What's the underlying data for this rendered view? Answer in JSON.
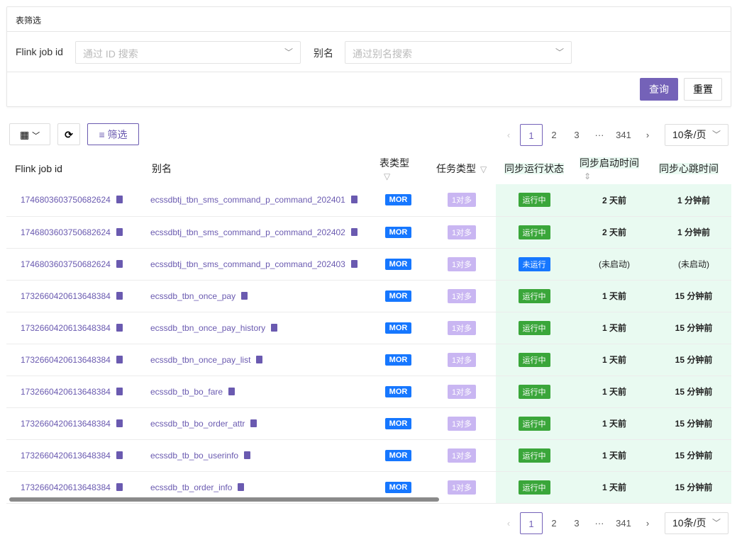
{
  "filter": {
    "title": "表筛选",
    "job_label": "Flink job id",
    "job_placeholder": "通过 ID 搜索",
    "alias_label": "别名",
    "alias_placeholder": "通过别名搜索",
    "query": "查询",
    "reset": "重置"
  },
  "toolbar": {
    "filter_label": "筛选"
  },
  "pagination": {
    "prev": "‹",
    "pages": [
      "1",
      "2",
      "3"
    ],
    "ellipsis": "···",
    "last": "341",
    "next": "›",
    "page_size": "10条/页",
    "current": "1"
  },
  "columns": [
    "Flink job id",
    "别名",
    "表类型",
    "任务类型",
    "同步运行状态",
    "同步启动时间",
    "同步心跳时间"
  ],
  "rows": [
    {
      "id": "1746803603750682624",
      "alias": "ecssdbtj_tbn_sms_command_p_command_202401",
      "type": "MOR",
      "task": "1对多",
      "status": "运行中",
      "start": "2 天前",
      "beat": "1 分钟前"
    },
    {
      "id": "1746803603750682624",
      "alias": "ecssdbtj_tbn_sms_command_p_command_202402",
      "type": "MOR",
      "task": "1对多",
      "status": "运行中",
      "start": "2 天前",
      "beat": "1 分钟前"
    },
    {
      "id": "1746803603750682624",
      "alias": "ecssdbtj_tbn_sms_command_p_command_202403",
      "type": "MOR",
      "task": "1对多",
      "status": "未运行",
      "start": "(未启动)",
      "beat": "(未启动)"
    },
    {
      "id": "1732660420613648384",
      "alias": "ecssdb_tbn_once_pay",
      "type": "MOR",
      "task": "1对多",
      "status": "运行中",
      "start": "1 天前",
      "beat": "15 分钟前"
    },
    {
      "id": "1732660420613648384",
      "alias": "ecssdb_tbn_once_pay_history",
      "type": "MOR",
      "task": "1对多",
      "status": "运行中",
      "start": "1 天前",
      "beat": "15 分钟前"
    },
    {
      "id": "1732660420613648384",
      "alias": "ecssdb_tbn_once_pay_list",
      "type": "MOR",
      "task": "1对多",
      "status": "运行中",
      "start": "1 天前",
      "beat": "15 分钟前"
    },
    {
      "id": "1732660420613648384",
      "alias": "ecssdb_tb_bo_fare",
      "type": "MOR",
      "task": "1对多",
      "status": "运行中",
      "start": "1 天前",
      "beat": "15 分钟前"
    },
    {
      "id": "1732660420613648384",
      "alias": "ecssdb_tb_bo_order_attr",
      "type": "MOR",
      "task": "1对多",
      "status": "运行中",
      "start": "1 天前",
      "beat": "15 分钟前"
    },
    {
      "id": "1732660420613648384",
      "alias": "ecssdb_tb_bo_userinfo",
      "type": "MOR",
      "task": "1对多",
      "status": "运行中",
      "start": "1 天前",
      "beat": "15 分钟前"
    },
    {
      "id": "1732660420613648384",
      "alias": "ecssdb_tb_order_info",
      "type": "MOR",
      "task": "1对多",
      "status": "运行中",
      "start": "1 天前",
      "beat": "15 分钟前"
    }
  ]
}
